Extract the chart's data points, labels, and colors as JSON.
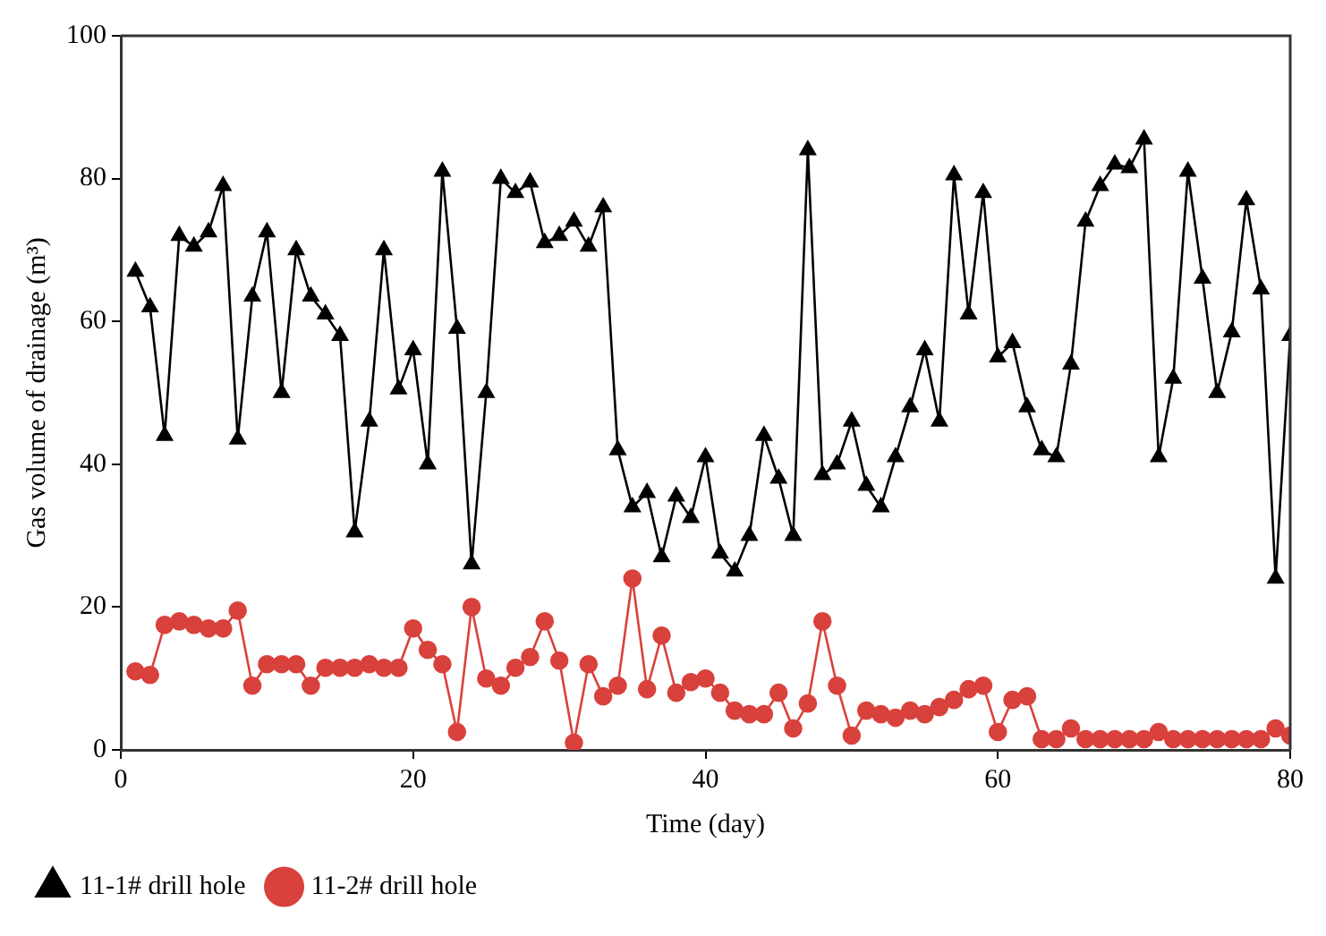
{
  "chart_data": {
    "type": "line",
    "xlabel": "Time (day)",
    "ylabel": "Gas volume of drainage (m³)",
    "x": [
      1,
      2,
      3,
      4,
      5,
      6,
      7,
      8,
      9,
      10,
      11,
      12,
      13,
      14,
      15,
      16,
      17,
      18,
      19,
      20,
      21,
      22,
      23,
      24,
      25,
      26,
      27,
      28,
      29,
      30,
      31,
      32,
      33,
      34,
      35,
      36,
      37,
      38,
      39,
      40,
      41,
      42,
      43,
      44,
      45,
      46,
      47,
      48,
      49,
      50,
      51,
      52,
      53,
      54,
      55,
      56,
      57,
      58,
      59,
      60,
      61,
      62,
      63,
      64,
      65,
      66,
      67,
      68,
      69,
      70,
      71,
      72,
      73,
      74,
      75,
      76,
      77,
      78,
      79,
      80
    ],
    "series": [
      {
        "name": "11-1# drill hole",
        "color": "#000000",
        "marker": "triangle",
        "values": [
          67,
          62,
          44,
          72,
          70.5,
          72.5,
          79,
          43.5,
          63.5,
          72.5,
          50,
          70,
          63.5,
          61,
          58,
          30.5,
          46,
          70,
          50.5,
          56,
          40,
          81,
          59,
          26,
          50,
          80,
          78,
          79.5,
          71,
          72,
          74,
          70.5,
          76,
          42,
          34,
          36,
          27,
          35.5,
          32.5,
          41,
          27.5,
          25,
          30,
          44,
          38,
          30,
          84,
          38.5,
          40,
          46,
          37,
          34,
          41,
          48,
          56,
          46,
          80.5,
          61,
          78,
          55,
          57,
          48,
          42,
          41,
          54,
          74,
          79,
          82,
          81.5,
          85.5,
          41,
          52,
          81,
          66,
          50,
          58.5,
          77,
          64.5,
          24,
          58
        ]
      },
      {
        "name": "11-2# drill hole",
        "color": "#d9413c",
        "marker": "circle",
        "values": [
          11,
          10.5,
          17.5,
          18,
          17.5,
          17,
          17,
          19.5,
          9,
          12,
          12,
          12,
          9,
          11.5,
          11.5,
          11.5,
          12,
          11.5,
          11.5,
          17,
          14,
          12,
          2.5,
          20,
          10,
          9,
          11.5,
          13,
          18,
          12.5,
          1,
          12,
          7.5,
          9,
          24,
          8.5,
          16,
          8,
          9.5,
          10,
          8,
          5.5,
          5,
          5,
          8,
          3,
          6.5,
          18,
          9,
          2,
          5.5,
          5,
          4.5,
          5.5,
          5,
          6,
          7,
          8.5,
          9,
          2.5,
          7,
          7.5,
          1.5,
          1.5,
          3,
          1.5,
          1.5,
          1.5,
          1.5,
          1.5,
          2.5,
          1.5,
          1.5,
          1.5,
          1.5,
          1.5,
          1.5,
          1.5,
          3,
          2
        ]
      }
    ],
    "xlim": [
      0,
      80
    ],
    "xticks": [
      0,
      20,
      40,
      60,
      80
    ],
    "ylim": [
      0,
      100
    ],
    "yticks": [
      0,
      20,
      40,
      60,
      80,
      100
    ],
    "grid": false,
    "legend": "bottom left",
    "line_style": "solid"
  }
}
